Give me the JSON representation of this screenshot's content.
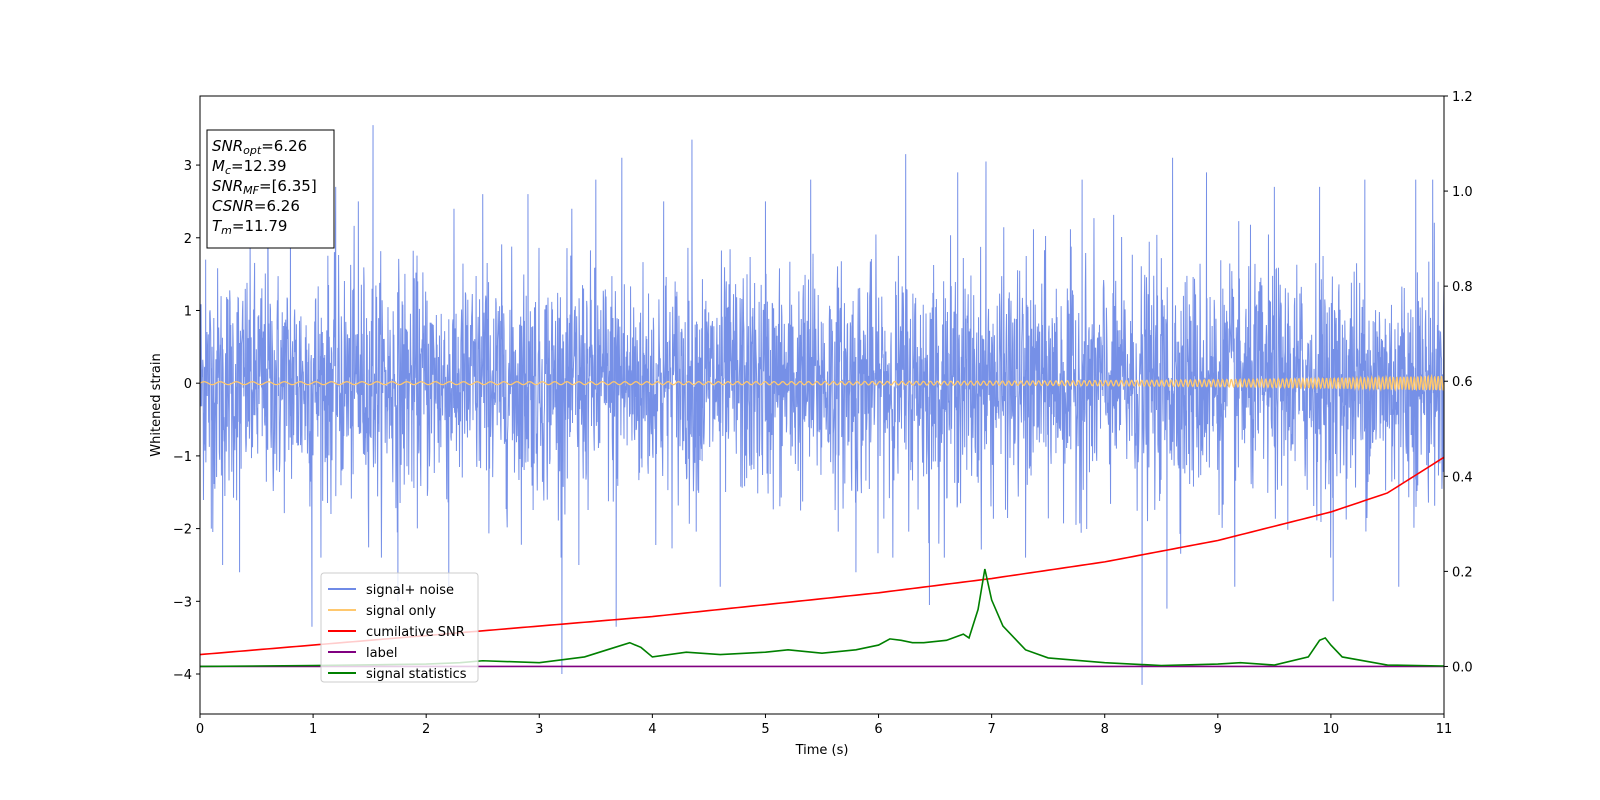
{
  "chart_data": {
    "type": "line",
    "xlabel": "Time (s)",
    "ylabel": "Whitened strain",
    "xlim": [
      0,
      11
    ],
    "ylim_left": [
      -4.55,
      3.95
    ],
    "ylim_right": [
      -0.1,
      1.2
    ],
    "x_ticks": [
      0,
      1,
      2,
      3,
      4,
      5,
      6,
      7,
      8,
      9,
      10,
      11
    ],
    "y_ticks_left": [
      -4,
      -3,
      -2,
      -1,
      0,
      1,
      2,
      3
    ],
    "y_ticks_left_labels": [
      "−4",
      "−3",
      "−2",
      "−1",
      "0",
      "1",
      "2",
      "3"
    ],
    "y_ticks_right": [
      0.0,
      0.2,
      0.4,
      0.6,
      0.8,
      1.0,
      1.2
    ],
    "y_ticks_right_labels": [
      "0.0",
      "0.2",
      "0.4",
      "0.6",
      "0.8",
      "1.0",
      "1.2"
    ],
    "grid": false,
    "legend_position": "lower-left",
    "series": [
      {
        "name": "signal+ noise",
        "color": "#6f8ae6",
        "axis": "left",
        "kind": "noise",
        "noise_band": [
          -1.5,
          1.5
        ],
        "points": [
          [
            0.05,
            1.7
          ],
          [
            0.1,
            -2.0
          ],
          [
            0.2,
            -2.5
          ],
          [
            0.35,
            -2.6
          ],
          [
            0.6,
            2.9
          ],
          [
            0.8,
            2.5
          ],
          [
            0.99,
            -3.35
          ],
          [
            1.2,
            2.7
          ],
          [
            1.4,
            2.5
          ],
          [
            1.53,
            3.55
          ],
          [
            1.75,
            -3.0
          ],
          [
            2.2,
            -2.8
          ],
          [
            2.5,
            2.6
          ],
          [
            2.9,
            2.6
          ],
          [
            3.2,
            -4.0
          ],
          [
            3.35,
            -2.5
          ],
          [
            3.5,
            2.8
          ],
          [
            3.68,
            -3.35
          ],
          [
            3.73,
            3.1
          ],
          [
            4.1,
            2.5
          ],
          [
            4.35,
            3.35
          ],
          [
            4.6,
            -2.8
          ],
          [
            5.0,
            2.5
          ],
          [
            5.4,
            2.8
          ],
          [
            5.8,
            -2.6
          ],
          [
            6.24,
            3.15
          ],
          [
            6.45,
            -3.05
          ],
          [
            6.7,
            2.9
          ],
          [
            6.95,
            3.05
          ],
          [
            7.3,
            -2.4
          ],
          [
            7.8,
            2.8
          ],
          [
            8.33,
            -4.15
          ],
          [
            8.55,
            -3.1
          ],
          [
            8.6,
            3.1
          ],
          [
            8.9,
            2.9
          ],
          [
            9.15,
            -2.8
          ],
          [
            9.5,
            2.7
          ],
          [
            9.9,
            2.7
          ],
          [
            10.02,
            -3.0
          ],
          [
            10.3,
            2.8
          ],
          [
            10.6,
            -2.8
          ],
          [
            10.75,
            2.8
          ],
          [
            10.9,
            2.8
          ]
        ]
      },
      {
        "name": "signal only",
        "color": "#ffc86e",
        "axis": "left",
        "kind": "chirp",
        "amplitude_start": 0.02,
        "amplitude_end": 0.1
      },
      {
        "name": "cumilative SNR",
        "color": "#ff0000",
        "axis": "right",
        "kind": "line",
        "x": [
          0,
          1,
          2,
          3,
          4,
          5,
          6,
          7,
          8,
          9,
          10,
          10.5,
          11
        ],
        "y": [
          0.025,
          0.045,
          0.065,
          0.085,
          0.105,
          0.13,
          0.155,
          0.185,
          0.22,
          0.265,
          0.325,
          0.365,
          0.44
        ]
      },
      {
        "name": "label",
        "color": "#800080",
        "axis": "right",
        "kind": "line",
        "x": [
          0,
          11
        ],
        "y": [
          0.0,
          0.0
        ]
      },
      {
        "name": "signal statistics",
        "color": "#008000",
        "axis": "right",
        "kind": "line",
        "x": [
          0,
          1,
          2,
          2.3,
          2.5,
          3.0,
          3.4,
          3.6,
          3.8,
          3.9,
          4.0,
          4.3,
          4.6,
          5.0,
          5.2,
          5.5,
          5.8,
          6.0,
          6.1,
          6.2,
          6.3,
          6.4,
          6.6,
          6.75,
          6.8,
          6.88,
          6.94,
          7.0,
          7.1,
          7.2,
          7.3,
          7.5,
          8.0,
          8.5,
          9.0,
          9.2,
          9.5,
          9.8,
          9.9,
          9.95,
          10.0,
          10.1,
          10.5,
          11.0
        ],
        "y": [
          0.0,
          0.002,
          0.005,
          0.008,
          0.012,
          0.008,
          0.02,
          0.035,
          0.05,
          0.04,
          0.02,
          0.03,
          0.025,
          0.03,
          0.035,
          0.028,
          0.035,
          0.045,
          0.058,
          0.055,
          0.05,
          0.05,
          0.055,
          0.068,
          0.06,
          0.12,
          0.205,
          0.14,
          0.085,
          0.06,
          0.035,
          0.018,
          0.008,
          0.002,
          0.005,
          0.008,
          0.003,
          0.02,
          0.055,
          0.06,
          0.045,
          0.02,
          0.003,
          0.001
        ]
      }
    ],
    "info_box": {
      "lines": [
        {
          "main": "SNR",
          "sub": "opt",
          "value": "=6.26"
        },
        {
          "main": "M",
          "sub": "c",
          "value": "=12.39"
        },
        {
          "main": "SNR",
          "sub": "MF",
          "value": "=[6.35]"
        },
        {
          "main": "CSNR",
          "sub": "",
          "value": "=6.26"
        },
        {
          "main": "T",
          "sub": "m",
          "value": "=11.79"
        }
      ]
    }
  }
}
